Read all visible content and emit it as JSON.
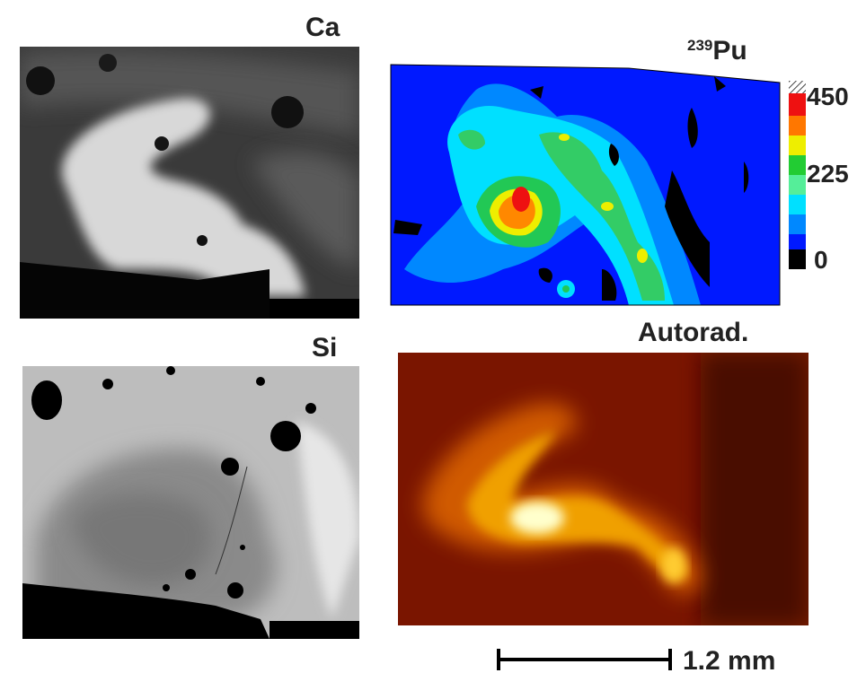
{
  "panels": [
    {
      "label": "Ca"
    },
    {
      "label_sup": "239",
      "label": "Pu",
      "colorbar_ticks": [
        450,
        225,
        0
      ]
    },
    {
      "label": "Si"
    },
    {
      "label": "Autorad."
    }
  ],
  "scale_bar": "1.2 mm"
}
